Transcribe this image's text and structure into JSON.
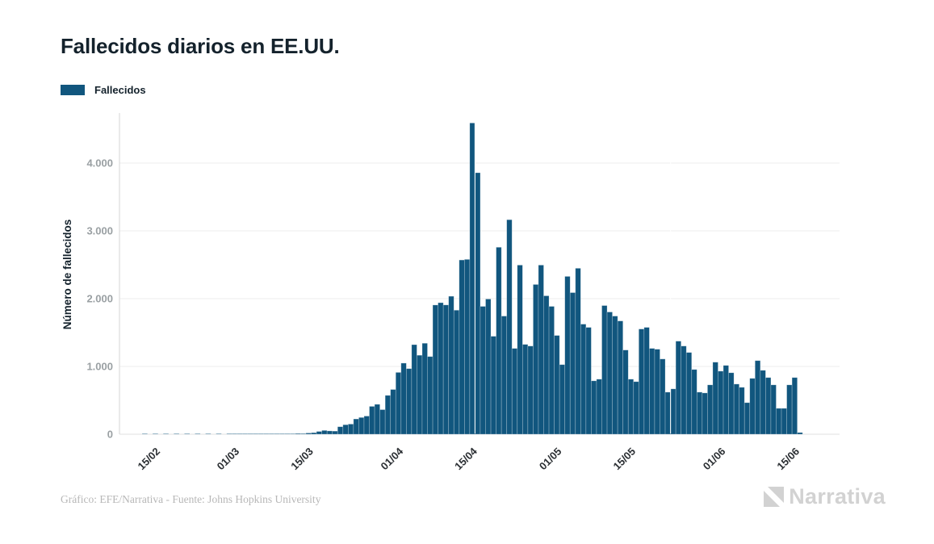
{
  "header": {
    "title": "Fallecidos diarios en EE.UU."
  },
  "legend": {
    "label": "Fallecidos",
    "swatch_color": "#11567E"
  },
  "chart_data": {
    "type": "bar",
    "title": "Fallecidos diarios en EE.UU.",
    "series_name": "Fallecidos",
    "ylabel": "Número de fallecidos",
    "xlabel": "",
    "frequency": "daily",
    "start_date": "10/02/2020",
    "end_date": "15/06/2020",
    "x_tick_labels": [
      "15/02",
      "01/03",
      "15/03",
      "01/04",
      "15/04",
      "01/05",
      "15/05",
      "01/06",
      "15/06"
    ],
    "y_ticks": [
      {
        "value": 0,
        "label": "0"
      },
      {
        "value": 1000,
        "label": "1.000"
      },
      {
        "value": 2000,
        "label": "2.000"
      },
      {
        "value": 3000,
        "label": "3.000"
      },
      {
        "value": 4000,
        "label": "4.000"
      }
    ],
    "ylim": [
      0,
      4700
    ],
    "grid": "horizontal",
    "legend_position": "top-left",
    "bar_color": "#11567E",
    "peak_value": 4591,
    "values": [
      0,
      0,
      1,
      0,
      1,
      0,
      1,
      0,
      1,
      0,
      1,
      0,
      1,
      0,
      1,
      0,
      1,
      0,
      1,
      1,
      1,
      1,
      4,
      2,
      3,
      2,
      3,
      5,
      4,
      6,
      7,
      11,
      10,
      18,
      23,
      41,
      56,
      49,
      46,
      111,
      140,
      150,
      225,
      247,
      268,
      411,
      441,
      363,
      573,
      660,
      912,
      1049,
      968,
      1321,
      1165,
      1342,
      1146,
      1906,
      1940,
      1907,
      2035,
      1830,
      2570,
      2579,
      4591,
      3857,
      1886,
      1994,
      1445,
      2758,
      1743,
      3164,
      1266,
      2495,
      1325,
      1301,
      2209,
      2495,
      2042,
      1886,
      1457,
      1027,
      2328,
      2089,
      2448,
      1624,
      1576,
      788,
      812,
      1898,
      1803,
      1743,
      1671,
      1242,
      812,
      776,
      1552,
      1576,
      1266,
      1254,
      1110,
      621,
      669,
      1373,
      1301,
      1206,
      955,
      621,
      609,
      728,
      1063,
      931,
      1015,
      907,
      740,
      692,
      466,
      824,
      1086,
      943,
      836,
      728,
      382,
      382,
      728,
      836,
      25
    ],
    "layout": {
      "seam_after_indices": [
        64,
        101
      ]
    }
  },
  "footer": {
    "credit": "Gráfico: EFE/Narrativa - Fuente: Johns Hopkins University",
    "brand": "Narrativa"
  }
}
